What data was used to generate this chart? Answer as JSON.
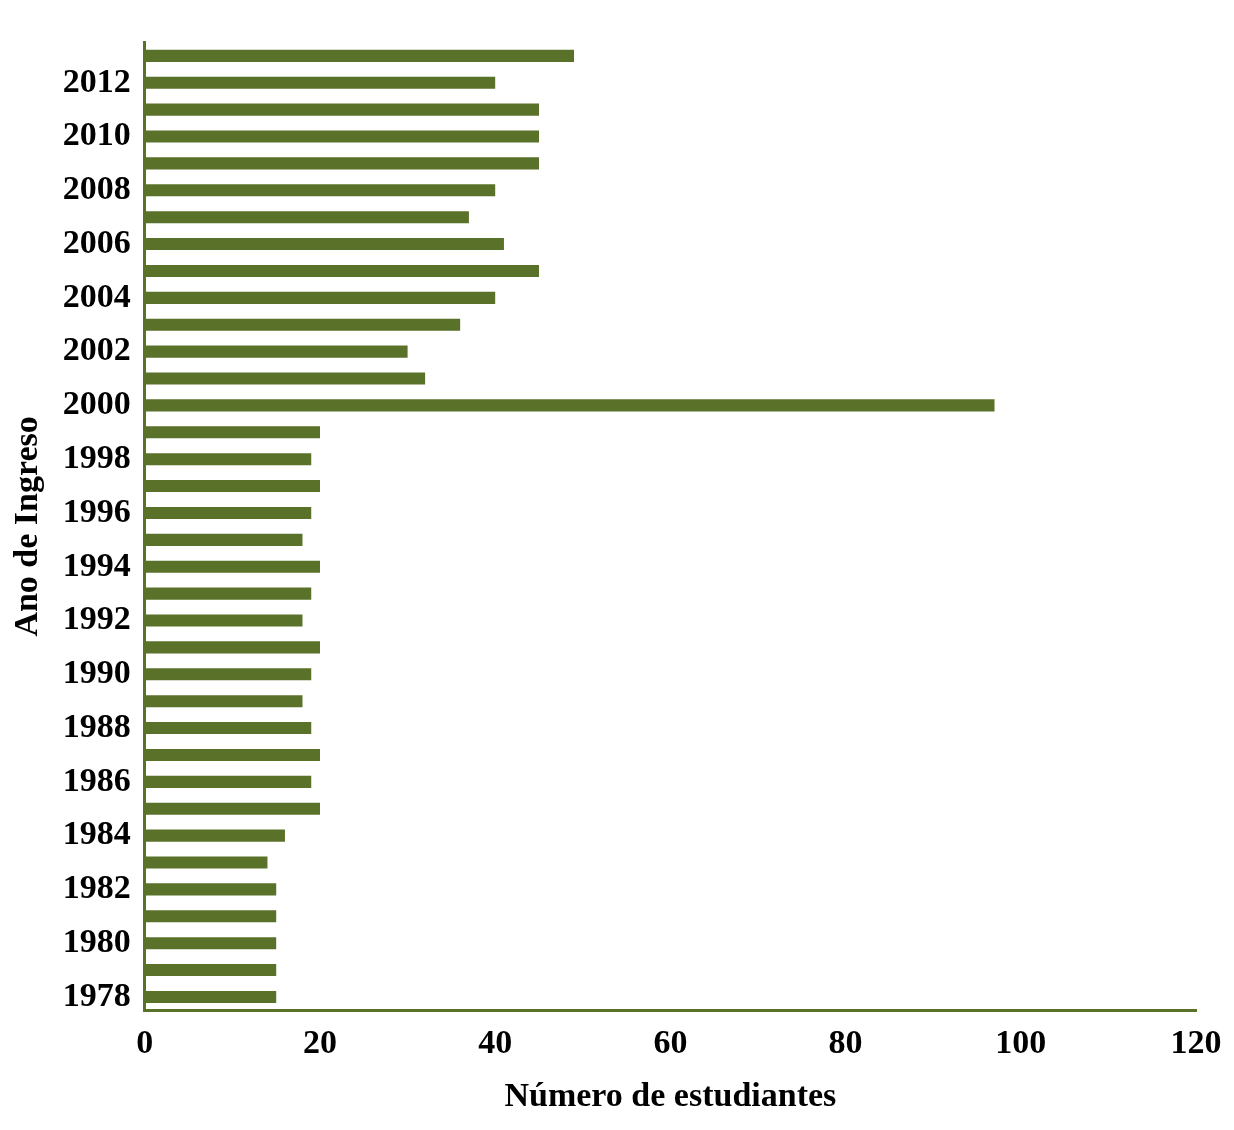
{
  "chart_data": {
    "type": "bar",
    "orientation": "horizontal",
    "xlabel": "Número de estudiantes",
    "ylabel": "Ano de Ingreso",
    "categories": [
      null,
      "2012",
      null,
      "2010",
      null,
      "2008",
      null,
      "2006",
      null,
      "2004",
      null,
      "2002",
      null,
      "2000",
      null,
      "1998",
      null,
      "1996",
      null,
      "1994",
      null,
      "1992",
      null,
      "1990",
      null,
      "1988",
      null,
      "1986",
      null,
      "1984",
      null,
      "1982",
      null,
      "1980",
      null,
      "1978"
    ],
    "values": [
      49,
      40,
      45,
      45,
      45,
      40,
      37,
      41,
      45,
      40,
      36,
      30,
      32,
      97,
      20,
      19,
      20,
      19,
      18,
      20,
      19,
      18,
      20,
      19,
      18,
      19,
      20,
      19,
      20,
      16,
      14,
      15,
      15,
      15,
      15,
      15
    ],
    "color": "#5a7129",
    "xlim": [
      0,
      120
    ],
    "xticks": [
      0,
      20,
      40,
      60,
      80,
      100,
      120
    ],
    "grid": false,
    "legend": false
  }
}
